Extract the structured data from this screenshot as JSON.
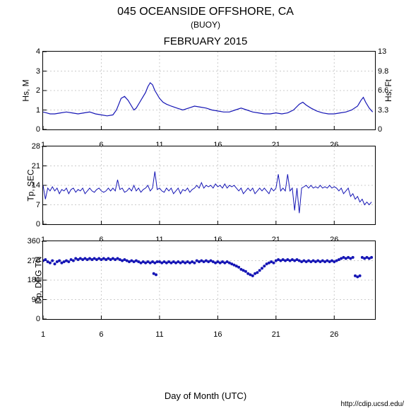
{
  "title": "045 OCEANSIDE OFFSHORE, CA",
  "subtitle": "(BUOY)",
  "month_title": "FEBRUARY 2015",
  "xlabel": "Day of Month (UTC)",
  "footer": "http://cdip.ucsd.edu/",
  "colors": {
    "line": "#1515b5",
    "scatter": "#1515b5",
    "grid": "#cccccc",
    "border": "#000000",
    "background": "#ffffff"
  },
  "xaxis": {
    "min": 1,
    "max": 29.5,
    "ticks": [
      1,
      6,
      11,
      16,
      21,
      26
    ]
  },
  "panels": [
    {
      "type": "line",
      "height": 110,
      "ylabel": "Hs, M",
      "ylabel_right": "Hs, Ft",
      "ylim": [
        0,
        4
      ],
      "yticks": [
        0,
        1,
        2,
        3,
        4
      ],
      "yticks_right": [
        0,
        3.3,
        6.6,
        9.8,
        13
      ],
      "line_color": "#1515b5",
      "line_width": 1.2,
      "data": [
        [
          1,
          0.9
        ],
        [
          1.3,
          0.85
        ],
        [
          1.6,
          0.8
        ],
        [
          2,
          0.8
        ],
        [
          2.5,
          0.85
        ],
        [
          3,
          0.9
        ],
        [
          3.5,
          0.85
        ],
        [
          4,
          0.8
        ],
        [
          4.5,
          0.85
        ],
        [
          5,
          0.9
        ],
        [
          5.5,
          0.8
        ],
        [
          6,
          0.75
        ],
        [
          6.5,
          0.7
        ],
        [
          7,
          0.75
        ],
        [
          7.3,
          1.0
        ],
        [
          7.5,
          1.3
        ],
        [
          7.7,
          1.6
        ],
        [
          8,
          1.7
        ],
        [
          8.3,
          1.5
        ],
        [
          8.6,
          1.2
        ],
        [
          8.8,
          1.0
        ],
        [
          9,
          1.1
        ],
        [
          9.3,
          1.4
        ],
        [
          9.6,
          1.7
        ],
        [
          9.8,
          1.9
        ],
        [
          10,
          2.2
        ],
        [
          10.2,
          2.4
        ],
        [
          10.4,
          2.3
        ],
        [
          10.6,
          2.0
        ],
        [
          10.8,
          1.8
        ],
        [
          11,
          1.6
        ],
        [
          11.3,
          1.4
        ],
        [
          11.6,
          1.3
        ],
        [
          12,
          1.2
        ],
        [
          12.5,
          1.1
        ],
        [
          13,
          1.0
        ],
        [
          13.5,
          1.1
        ],
        [
          14,
          1.2
        ],
        [
          14.5,
          1.15
        ],
        [
          15,
          1.1
        ],
        [
          15.5,
          1.0
        ],
        [
          16,
          0.95
        ],
        [
          16.5,
          0.9
        ],
        [
          17,
          0.9
        ],
        [
          17.5,
          1.0
        ],
        [
          18,
          1.1
        ],
        [
          18.5,
          1.0
        ],
        [
          19,
          0.9
        ],
        [
          19.5,
          0.85
        ],
        [
          20,
          0.8
        ],
        [
          20.5,
          0.8
        ],
        [
          21,
          0.85
        ],
        [
          21.5,
          0.8
        ],
        [
          22,
          0.85
        ],
        [
          22.5,
          1.0
        ],
        [
          23,
          1.3
        ],
        [
          23.3,
          1.4
        ],
        [
          23.6,
          1.25
        ],
        [
          24,
          1.1
        ],
        [
          24.5,
          0.95
        ],
        [
          25,
          0.85
        ],
        [
          25.5,
          0.8
        ],
        [
          26,
          0.8
        ],
        [
          26.5,
          0.85
        ],
        [
          27,
          0.9
        ],
        [
          27.5,
          1.0
        ],
        [
          28,
          1.2
        ],
        [
          28.3,
          1.5
        ],
        [
          28.5,
          1.65
        ],
        [
          28.7,
          1.4
        ],
        [
          29,
          1.1
        ],
        [
          29.3,
          0.9
        ]
      ]
    },
    {
      "type": "line",
      "height": 110,
      "ylabel": "Tp, SEC",
      "ylim": [
        0,
        28
      ],
      "yticks": [
        0,
        7,
        14,
        21,
        28
      ],
      "line_color": "#1515b5",
      "line_width": 1,
      "noisy": true,
      "data": [
        [
          1,
          14
        ],
        [
          1.2,
          9
        ],
        [
          1.4,
          13
        ],
        [
          1.6,
          12
        ],
        [
          1.8,
          13.5
        ],
        [
          2,
          12
        ],
        [
          2.2,
          13
        ],
        [
          2.4,
          11
        ],
        [
          2.6,
          12.5
        ],
        [
          2.8,
          12
        ],
        [
          3,
          13
        ],
        [
          3.2,
          11
        ],
        [
          3.4,
          12.5
        ],
        [
          3.6,
          13
        ],
        [
          3.8,
          11.5
        ],
        [
          4,
          12.5
        ],
        [
          4.2,
          12
        ],
        [
          4.4,
          13
        ],
        [
          4.6,
          11
        ],
        [
          4.8,
          12
        ],
        [
          5,
          13
        ],
        [
          5.2,
          12
        ],
        [
          5.4,
          11.5
        ],
        [
          5.6,
          12.5
        ],
        [
          5.8,
          13
        ],
        [
          6,
          12
        ],
        [
          6.2,
          11.5
        ],
        [
          6.4,
          12
        ],
        [
          6.6,
          13
        ],
        [
          6.8,
          12
        ],
        [
          7,
          13
        ],
        [
          7.2,
          12
        ],
        [
          7.4,
          16
        ],
        [
          7.6,
          12.5
        ],
        [
          7.8,
          13
        ],
        [
          8,
          11.5
        ],
        [
          8.2,
          12
        ],
        [
          8.4,
          13
        ],
        [
          8.6,
          12
        ],
        [
          8.8,
          14
        ],
        [
          9,
          12
        ],
        [
          9.2,
          13
        ],
        [
          9.4,
          11.5
        ],
        [
          9.6,
          12.5
        ],
        [
          9.8,
          13
        ],
        [
          10,
          14
        ],
        [
          10.2,
          12
        ],
        [
          10.4,
          13
        ],
        [
          10.6,
          19
        ],
        [
          10.8,
          12.5
        ],
        [
          11,
          13
        ],
        [
          11.2,
          12
        ],
        [
          11.4,
          11.5
        ],
        [
          11.6,
          13
        ],
        [
          11.8,
          12
        ],
        [
          12,
          13
        ],
        [
          12.2,
          11
        ],
        [
          12.4,
          12
        ],
        [
          12.6,
          13
        ],
        [
          12.8,
          11
        ],
        [
          13,
          12.5
        ],
        [
          13.2,
          12
        ],
        [
          13.4,
          13
        ],
        [
          13.6,
          11.5
        ],
        [
          13.8,
          12.5
        ],
        [
          14,
          13
        ],
        [
          14.2,
          14
        ],
        [
          14.4,
          13
        ],
        [
          14.6,
          15
        ],
        [
          14.8,
          13
        ],
        [
          15,
          14
        ],
        [
          15.2,
          13.5
        ],
        [
          15.4,
          14
        ],
        [
          15.6,
          13
        ],
        [
          15.8,
          14.5
        ],
        [
          16,
          13.5
        ],
        [
          16.2,
          14
        ],
        [
          16.4,
          13
        ],
        [
          16.6,
          14.5
        ],
        [
          16.8,
          13
        ],
        [
          17,
          14
        ],
        [
          17.2,
          13.5
        ],
        [
          17.4,
          14
        ],
        [
          17.6,
          13
        ],
        [
          17.8,
          12
        ],
        [
          18,
          13
        ],
        [
          18.2,
          11
        ],
        [
          18.4,
          12
        ],
        [
          18.6,
          13
        ],
        [
          18.8,
          12
        ],
        [
          19,
          13
        ],
        [
          19.2,
          11
        ],
        [
          19.4,
          12
        ],
        [
          19.6,
          13
        ],
        [
          19.8,
          12
        ],
        [
          20,
          13
        ],
        [
          20.2,
          12
        ],
        [
          20.4,
          11
        ],
        [
          20.6,
          13
        ],
        [
          20.8,
          12
        ],
        [
          21,
          13
        ],
        [
          21.2,
          18
        ],
        [
          21.4,
          12
        ],
        [
          21.6,
          13
        ],
        [
          21.8,
          12
        ],
        [
          22,
          18
        ],
        [
          22.2,
          12
        ],
        [
          22.4,
          13
        ],
        [
          22.6,
          5
        ],
        [
          22.8,
          13
        ],
        [
          23,
          4
        ],
        [
          23.2,
          13
        ],
        [
          23.4,
          13.5
        ],
        [
          23.6,
          14
        ],
        [
          23.8,
          13
        ],
        [
          24,
          14
        ],
        [
          24.2,
          13
        ],
        [
          24.4,
          13.5
        ],
        [
          24.6,
          13
        ],
        [
          24.8,
          14
        ],
        [
          25,
          13
        ],
        [
          25.2,
          13.5
        ],
        [
          25.4,
          13
        ],
        [
          25.6,
          14
        ],
        [
          25.8,
          13
        ],
        [
          26,
          13.5
        ],
        [
          26.2,
          13
        ],
        [
          26.4,
          12
        ],
        [
          26.6,
          13
        ],
        [
          26.8,
          11
        ],
        [
          27,
          12
        ],
        [
          27.2,
          13
        ],
        [
          27.4,
          10
        ],
        [
          27.6,
          11
        ],
        [
          27.8,
          9
        ],
        [
          28,
          10
        ],
        [
          28.2,
          8
        ],
        [
          28.4,
          9
        ],
        [
          28.6,
          7
        ],
        [
          28.8,
          8
        ],
        [
          29,
          7
        ],
        [
          29.2,
          8
        ]
      ]
    },
    {
      "type": "scatter",
      "height": 110,
      "ylabel": "Dp, DEG TN",
      "ylim": [
        0,
        360
      ],
      "yticks": [
        0,
        90,
        180,
        270,
        360
      ],
      "marker_color": "#1515b5",
      "marker_size": 2,
      "data": [
        [
          1,
          270
        ],
        [
          1.2,
          275
        ],
        [
          1.4,
          265
        ],
        [
          1.6,
          260
        ],
        [
          1.8,
          270
        ],
        [
          2,
          255
        ],
        [
          2.2,
          265
        ],
        [
          2.4,
          270
        ],
        [
          2.6,
          260
        ],
        [
          2.8,
          265
        ],
        [
          3,
          270
        ],
        [
          3.2,
          265
        ],
        [
          3.4,
          275
        ],
        [
          3.6,
          270
        ],
        [
          3.8,
          280
        ],
        [
          4,
          275
        ],
        [
          4.2,
          280
        ],
        [
          4.4,
          275
        ],
        [
          4.6,
          280
        ],
        [
          4.8,
          275
        ],
        [
          5,
          280
        ],
        [
          5.2,
          275
        ],
        [
          5.4,
          280
        ],
        [
          5.6,
          275
        ],
        [
          5.8,
          280
        ],
        [
          6,
          275
        ],
        [
          6.2,
          280
        ],
        [
          6.4,
          275
        ],
        [
          6.6,
          280
        ],
        [
          6.8,
          275
        ],
        [
          7,
          280
        ],
        [
          7.2,
          275
        ],
        [
          7.4,
          280
        ],
        [
          7.6,
          275
        ],
        [
          7.8,
          270
        ],
        [
          8,
          275
        ],
        [
          8.2,
          270
        ],
        [
          8.4,
          265
        ],
        [
          8.6,
          270
        ],
        [
          8.8,
          265
        ],
        [
          9,
          270
        ],
        [
          9.2,
          265
        ],
        [
          9.4,
          260
        ],
        [
          9.6,
          265
        ],
        [
          9.8,
          260
        ],
        [
          10,
          265
        ],
        [
          10.2,
          260
        ],
        [
          10.4,
          265
        ],
        [
          10.6,
          260
        ],
        [
          10.8,
          265
        ],
        [
          10.5,
          210
        ],
        [
          10.7,
          205
        ],
        [
          11,
          265
        ],
        [
          11.2,
          260
        ],
        [
          11.4,
          265
        ],
        [
          11.6,
          260
        ],
        [
          11.8,
          265
        ],
        [
          12,
          260
        ],
        [
          12.2,
          265
        ],
        [
          12.4,
          260
        ],
        [
          12.6,
          265
        ],
        [
          12.8,
          260
        ],
        [
          13,
          265
        ],
        [
          13.2,
          260
        ],
        [
          13.4,
          265
        ],
        [
          13.6,
          260
        ],
        [
          13.8,
          265
        ],
        [
          14,
          260
        ],
        [
          14.2,
          270
        ],
        [
          14.4,
          265
        ],
        [
          14.6,
          270
        ],
        [
          14.8,
          265
        ],
        [
          15,
          270
        ],
        [
          15.2,
          265
        ],
        [
          15.4,
          270
        ],
        [
          15.6,
          265
        ],
        [
          15.8,
          260
        ],
        [
          16,
          265
        ],
        [
          16.2,
          260
        ],
        [
          16.4,
          265
        ],
        [
          16.6,
          260
        ],
        [
          16.8,
          265
        ],
        [
          17,
          260
        ],
        [
          17.2,
          255
        ],
        [
          17.4,
          250
        ],
        [
          17.6,
          245
        ],
        [
          17.8,
          240
        ],
        [
          18,
          230
        ],
        [
          18.2,
          225
        ],
        [
          18.4,
          220
        ],
        [
          18.6,
          210
        ],
        [
          18.8,
          205
        ],
        [
          19,
          200
        ],
        [
          19.2,
          210
        ],
        [
          19.4,
          215
        ],
        [
          19.6,
          225
        ],
        [
          19.8,
          235
        ],
        [
          20,
          245
        ],
        [
          20.2,
          255
        ],
        [
          20.4,
          260
        ],
        [
          20.6,
          265
        ],
        [
          20.8,
          260
        ],
        [
          21,
          270
        ],
        [
          21.2,
          275
        ],
        [
          21.4,
          270
        ],
        [
          21.6,
          275
        ],
        [
          21.8,
          270
        ],
        [
          22,
          275
        ],
        [
          22.2,
          270
        ],
        [
          22.4,
          275
        ],
        [
          22.6,
          270
        ],
        [
          22.8,
          275
        ],
        [
          23,
          270
        ],
        [
          23.2,
          265
        ],
        [
          23.4,
          270
        ],
        [
          23.6,
          265
        ],
        [
          23.8,
          270
        ],
        [
          24,
          265
        ],
        [
          24.2,
          270
        ],
        [
          24.4,
          265
        ],
        [
          24.6,
          270
        ],
        [
          24.8,
          265
        ],
        [
          25,
          270
        ],
        [
          25.2,
          265
        ],
        [
          25.4,
          270
        ],
        [
          25.6,
          265
        ],
        [
          25.8,
          270
        ],
        [
          26,
          265
        ],
        [
          26.2,
          270
        ],
        [
          26.4,
          275
        ],
        [
          26.6,
          280
        ],
        [
          26.8,
          285
        ],
        [
          27,
          280
        ],
        [
          27.2,
          285
        ],
        [
          27.4,
          280
        ],
        [
          27.6,
          285
        ],
        [
          27.8,
          200
        ],
        [
          28,
          195
        ],
        [
          28.2,
          200
        ],
        [
          28.4,
          285
        ],
        [
          28.6,
          280
        ],
        [
          28.8,
          285
        ],
        [
          29,
          280
        ],
        [
          29.2,
          285
        ]
      ]
    }
  ]
}
